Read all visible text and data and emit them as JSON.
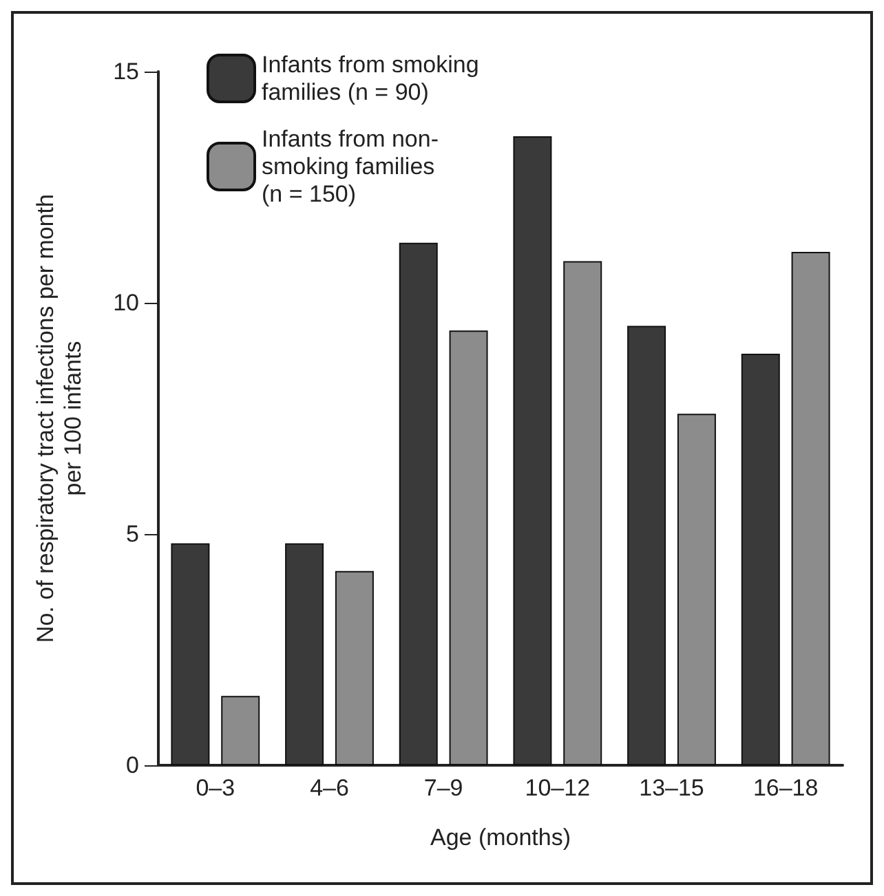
{
  "chart_data": {
    "type": "bar",
    "xlabel": "Age (months)",
    "ylabel": "No. of respiratory tract infections per month\nper 100 infants",
    "categories": [
      "0–3",
      "4–6",
      "7–9",
      "10–12",
      "13–15",
      "16–18"
    ],
    "series": [
      {
        "name": "Infants from smoking\nfamilies (n = 90)",
        "color": "#3a3a3a",
        "values": [
          4.8,
          4.8,
          11.3,
          13.6,
          9.5,
          8.9
        ]
      },
      {
        "name": "Infants from non-\nsmoking families\n(n = 150)",
        "color": "#8c8c8c",
        "values": [
          1.5,
          4.2,
          9.4,
          10.9,
          7.6,
          11.1
        ]
      }
    ],
    "ylim": [
      0,
      15
    ],
    "yticks": [
      0,
      5,
      10,
      15
    ],
    "grid": false,
    "legend": "top left"
  }
}
